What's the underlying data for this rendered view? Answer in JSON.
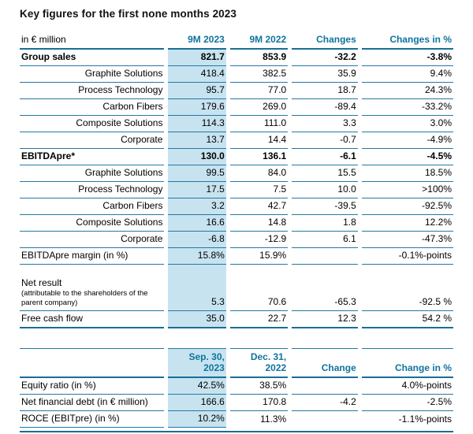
{
  "title": "Key figures for the first none months 2023",
  "colors": {
    "accent": "#0F749E",
    "highlight": "#C7E3EF",
    "rule": "#2578A2"
  },
  "t1": {
    "head": {
      "label": "in € million",
      "c1": "9M 2023",
      "c2": "9M 2022",
      "c3": "Changes",
      "c4": "Changes in %"
    },
    "rows": [
      {
        "label": "Group sales",
        "c1": "821.7",
        "c2": "853.9",
        "c3": "-32.2",
        "c4": "-3.8%"
      },
      {
        "label": "Graphite Solutions",
        "c1": "418.4",
        "c2": "382.5",
        "c3": "35.9",
        "c4": "9.4%"
      },
      {
        "label": "Process Technology",
        "c1": "95.7",
        "c2": "77.0",
        "c3": "18.7",
        "c4": "24.3%"
      },
      {
        "label": "Carbon Fibers",
        "c1": "179.6",
        "c2": "269.0",
        "c3": "-89.4",
        "c4": "-33.2%"
      },
      {
        "label": "Composite Solutions",
        "c1": "114.3",
        "c2": "111.0",
        "c3": "3.3",
        "c4": "3.0%"
      },
      {
        "label": "Corporate",
        "c1": "13.7",
        "c2": "14.4",
        "c3": "-0.7",
        "c4": "-4.9%"
      },
      {
        "label": "EBITDApre*",
        "c1": "130.0",
        "c2": "136.1",
        "c3": "-6.1",
        "c4": "-4.5%"
      },
      {
        "label": "Graphite Solutions",
        "c1": "99.5",
        "c2": "84.0",
        "c3": "15.5",
        "c4": "18.5%"
      },
      {
        "label": "Process Technology",
        "c1": "17.5",
        "c2": "7.5",
        "c3": "10.0",
        "c4": ">100%"
      },
      {
        "label": "Carbon Fibers",
        "c1": "3.2",
        "c2": "42.7",
        "c3": "-39.5",
        "c4": "-92.5%"
      },
      {
        "label": "Composite Solutions",
        "c1": "16.6",
        "c2": "14.8",
        "c3": "1.8",
        "c4": "12.2%"
      },
      {
        "label": "Corporate",
        "c1": "-6.8",
        "c2": "-12.9",
        "c3": "6.1",
        "c4": "-47.3%"
      },
      {
        "label": "EBITDApre margin (in %)",
        "c1": "15.8%",
        "c2": "15.9%",
        "c3": "",
        "c4": "-0.1%-points"
      },
      {
        "label": "Net result",
        "sublabel": "(attributable to the shareholders of the parent company)",
        "c1": "5.3",
        "c2": "70.6",
        "c3": "-65.3",
        "c4": "-92.5 %"
      },
      {
        "label": "Free cash flow",
        "c1": "35.0",
        "c2": "22.7",
        "c3": "12.3",
        "c4": "54.2 %"
      }
    ]
  },
  "t2": {
    "head": {
      "c1a": "Sep. 30,",
      "c1b": "2023",
      "c2a": "Dec. 31,",
      "c2b": "2022",
      "c3": "Change",
      "c4": "Change in %"
    },
    "rows": [
      {
        "label": "Equity ratio (in %)",
        "c1": "42.5%",
        "c2": "38.5%",
        "c3": "",
        "c4": "4.0%-points"
      },
      {
        "label": "Net financial debt (in € million)",
        "c1": "166.6",
        "c2": "170.8",
        "c3": "-4.2",
        "c4": "-2.5%"
      },
      {
        "label": "ROCE (EBITpre) (in %)",
        "c1": "10.2%",
        "c2": "11.3%",
        "c3": "",
        "c4": "-1.1%-points"
      }
    ]
  }
}
